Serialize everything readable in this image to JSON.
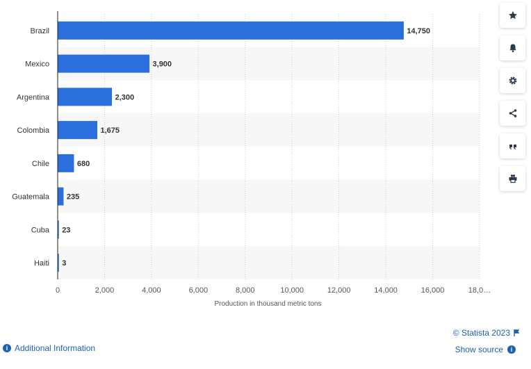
{
  "chart_data": {
    "type": "bar",
    "orientation": "horizontal",
    "categories": [
      "Brazil",
      "Mexico",
      "Argentina",
      "Colombia",
      "Chile",
      "Guatemala",
      "Cuba",
      "Haiti"
    ],
    "values": [
      14750,
      3900,
      2300,
      1675,
      680,
      235,
      23,
      3
    ],
    "value_labels": [
      "14,750",
      "3,900",
      "2,300",
      "1,675",
      "680",
      "235",
      "23",
      "3"
    ],
    "xlabel": "Production in thousand metric tons",
    "ylabel": "",
    "xlim": [
      0,
      18000
    ],
    "x_ticks": [
      "0",
      "2,000",
      "4,000",
      "6,000",
      "8,000",
      "10,000",
      "12,000",
      "14,000",
      "16,000",
      "18,0…"
    ],
    "bar_color": "#2a6fdb",
    "grid": "vertical dotted",
    "alternating_row_shading": true
  },
  "toolbar": {
    "icons": [
      "star-icon",
      "bell-icon",
      "gear-icon",
      "share-icon",
      "quote-icon",
      "print-icon"
    ]
  },
  "footer": {
    "credit": "© Statista 2023",
    "show_source": "Show source",
    "additional_info": "Additional Information"
  }
}
